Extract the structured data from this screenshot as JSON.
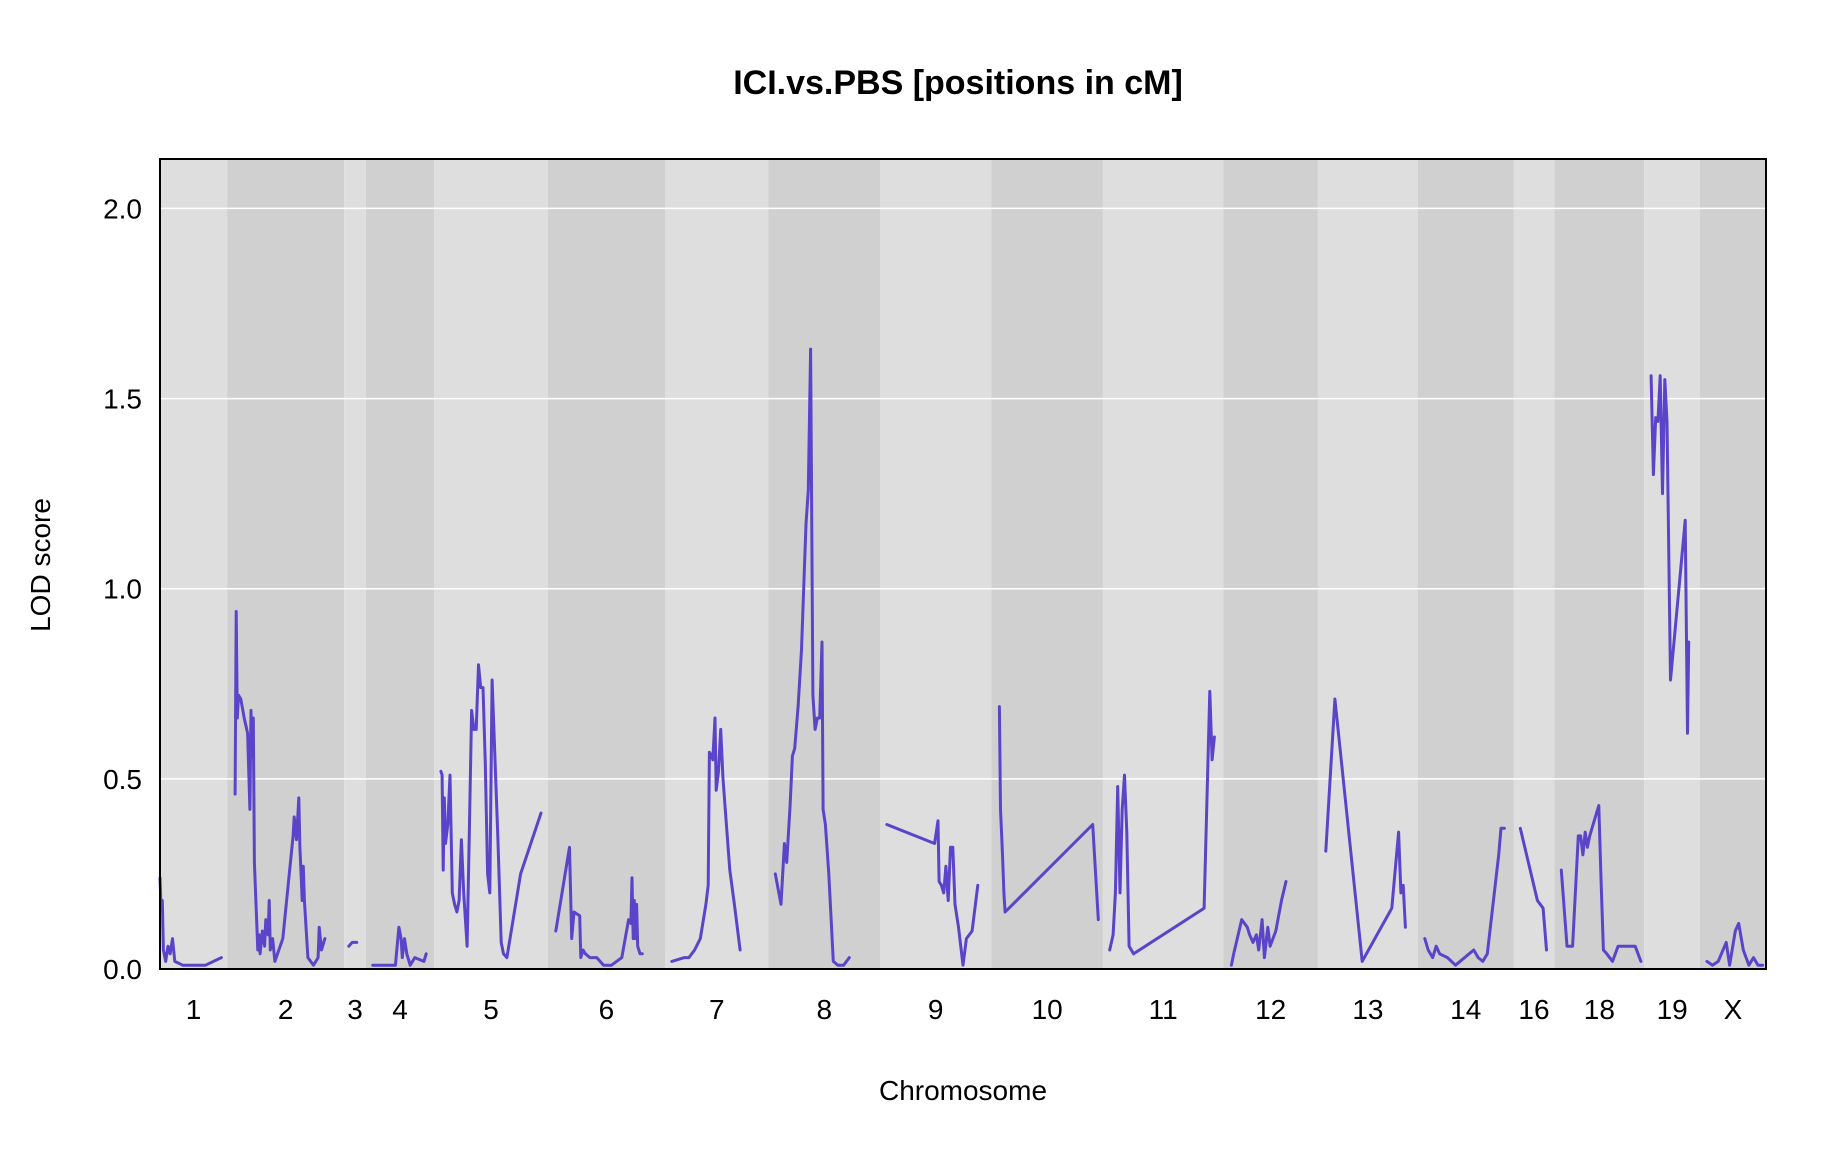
{
  "chart_data": {
    "type": "line",
    "title": "ICI.vs.PBS [positions in cM]",
    "xlabel": "Chromosome",
    "ylabel": "LOD score",
    "ylim": [
      0,
      2.13
    ],
    "yticks": [
      "0.0",
      "0.5",
      "1.0",
      "1.5",
      "2.0"
    ],
    "ytick_values": [
      0,
      0.5,
      1.0,
      1.5,
      2.0
    ],
    "grid": "horizontal",
    "line_color": "#5b44c9",
    "band_colors": [
      "#dedede",
      "#d0d0d0"
    ],
    "chromosomes": [
      {
        "name": "1",
        "length": 58,
        "points": [
          [
            0,
            0.24
          ],
          [
            1,
            0.16
          ],
          [
            2,
            0.18
          ],
          [
            3,
            0.05
          ],
          [
            5,
            0.02
          ],
          [
            7,
            0.06
          ],
          [
            9,
            0.04
          ],
          [
            11,
            0.08
          ],
          [
            13,
            0.02
          ],
          [
            20,
            0.01
          ],
          [
            40,
            0.01
          ],
          [
            54,
            0.03
          ]
        ]
      },
      {
        "name": "2",
        "length": 101,
        "points": [
          [
            6,
            0.46
          ],
          [
            7,
            0.94
          ],
          [
            8,
            0.66
          ],
          [
            9,
            0.72
          ],
          [
            11,
            0.71
          ],
          [
            14,
            0.66
          ],
          [
            17,
            0.62
          ],
          [
            19,
            0.42
          ],
          [
            20,
            0.68
          ],
          [
            21,
            0.56
          ],
          [
            22,
            0.66
          ],
          [
            23,
            0.28
          ],
          [
            26,
            0.05
          ],
          [
            27,
            0.09
          ],
          [
            28,
            0.04
          ],
          [
            30,
            0.1
          ],
          [
            32,
            0.06
          ],
          [
            33,
            0.13
          ],
          [
            35,
            0.09
          ],
          [
            36,
            0.18
          ],
          [
            37,
            0.05
          ],
          [
            39,
            0.08
          ],
          [
            41,
            0.02
          ],
          [
            48,
            0.08
          ],
          [
            57,
            0.35
          ],
          [
            58,
            0.4
          ],
          [
            60,
            0.34
          ],
          [
            62,
            0.45
          ],
          [
            63,
            0.32
          ],
          [
            65,
            0.18
          ],
          [
            66,
            0.27
          ],
          [
            67,
            0.18
          ],
          [
            70,
            0.03
          ],
          [
            75,
            0.01
          ],
          [
            79,
            0.03
          ],
          [
            80,
            0.11
          ],
          [
            82,
            0.05
          ],
          [
            85,
            0.08
          ]
        ]
      },
      {
        "name": "3",
        "length": 17,
        "points": [
          [
            3,
            0.06
          ],
          [
            6,
            0.07
          ],
          [
            10,
            0.07
          ]
        ]
      },
      {
        "name": "4",
        "length": 58,
        "points": [
          [
            5,
            0.01
          ],
          [
            25,
            0.01
          ],
          [
            28,
            0.11
          ],
          [
            30,
            0.08
          ],
          [
            31,
            0.03
          ],
          [
            33,
            0.08
          ],
          [
            35,
            0.04
          ],
          [
            38,
            0.01
          ],
          [
            42,
            0.03
          ],
          [
            50,
            0.02
          ],
          [
            52,
            0.04
          ]
        ]
      },
      {
        "name": "5",
        "length": 98,
        "points": [
          [
            5,
            0.52
          ],
          [
            6,
            0.51
          ],
          [
            7,
            0.26
          ],
          [
            8,
            0.45
          ],
          [
            9,
            0.33
          ],
          [
            11,
            0.38
          ],
          [
            13,
            0.51
          ],
          [
            15,
            0.2
          ],
          [
            17,
            0.17
          ],
          [
            19,
            0.15
          ],
          [
            21,
            0.18
          ],
          [
            23,
            0.34
          ],
          [
            25,
            0.2
          ],
          [
            28,
            0.06
          ],
          [
            30,
            0.37
          ],
          [
            32,
            0.68
          ],
          [
            34,
            0.63
          ],
          [
            36,
            0.63
          ],
          [
            38,
            0.8
          ],
          [
            40,
            0.74
          ],
          [
            42,
            0.74
          ],
          [
            44,
            0.54
          ],
          [
            46,
            0.25
          ],
          [
            48,
            0.2
          ],
          [
            50,
            0.76
          ],
          [
            55,
            0.35
          ],
          [
            58,
            0.07
          ],
          [
            60,
            0.04
          ],
          [
            63,
            0.03
          ],
          [
            75,
            0.25
          ],
          [
            93,
            0.41
          ]
        ]
      },
      {
        "name": "6",
        "length": 101,
        "points": [
          [
            6,
            0.1
          ],
          [
            18,
            0.32
          ],
          [
            20,
            0.08
          ],
          [
            22,
            0.15
          ],
          [
            27,
            0.14
          ],
          [
            28,
            0.03
          ],
          [
            30,
            0.05
          ],
          [
            32,
            0.04
          ],
          [
            36,
            0.03
          ],
          [
            42,
            0.03
          ],
          [
            48,
            0.01
          ],
          [
            55,
            0.01
          ],
          [
            64,
            0.03
          ],
          [
            70,
            0.13
          ],
          [
            72,
            0.12
          ],
          [
            73,
            0.24
          ],
          [
            74,
            0.08
          ],
          [
            75,
            0.18
          ],
          [
            76,
            0.08
          ],
          [
            77,
            0.17
          ],
          [
            78,
            0.06
          ],
          [
            80,
            0.04
          ],
          [
            82,
            0.04
          ]
        ]
      },
      {
        "name": "7",
        "length": 89,
        "points": [
          [
            5,
            0.02
          ],
          [
            16,
            0.03
          ],
          [
            20,
            0.03
          ],
          [
            25,
            0.05
          ],
          [
            30,
            0.08
          ],
          [
            35,
            0.17
          ],
          [
            37,
            0.22
          ],
          [
            38,
            0.57
          ],
          [
            40,
            0.56
          ],
          [
            41,
            0.55
          ],
          [
            43,
            0.66
          ],
          [
            44,
            0.47
          ],
          [
            46,
            0.52
          ],
          [
            48,
            0.63
          ],
          [
            50,
            0.5
          ],
          [
            56,
            0.26
          ],
          [
            60,
            0.17
          ],
          [
            65,
            0.05
          ]
        ]
      },
      {
        "name": "8",
        "length": 96,
        "points": [
          [
            5,
            0.25
          ],
          [
            10,
            0.17
          ],
          [
            13,
            0.33
          ],
          [
            15,
            0.28
          ],
          [
            18,
            0.43
          ],
          [
            20,
            0.56
          ],
          [
            22,
            0.58
          ],
          [
            25,
            0.69
          ],
          [
            28,
            0.84
          ],
          [
            32,
            1.17
          ],
          [
            34,
            1.26
          ],
          [
            36,
            1.63
          ],
          [
            38,
            0.72
          ],
          [
            40,
            0.63
          ],
          [
            42,
            0.66
          ],
          [
            44,
            0.66
          ],
          [
            46,
            0.86
          ],
          [
            47,
            0.42
          ],
          [
            49,
            0.38
          ],
          [
            52,
            0.25
          ],
          [
            56,
            0.02
          ],
          [
            60,
            0.01
          ],
          [
            65,
            0.01
          ],
          [
            70,
            0.03
          ]
        ]
      },
      {
        "name": "9",
        "length": 96,
        "points": [
          [
            5,
            0.38
          ],
          [
            47,
            0.33
          ],
          [
            50,
            0.39
          ],
          [
            51,
            0.23
          ],
          [
            53,
            0.22
          ],
          [
            55,
            0.2
          ],
          [
            57,
            0.27
          ],
          [
            59,
            0.18
          ],
          [
            61,
            0.32
          ],
          [
            63,
            0.32
          ],
          [
            65,
            0.17
          ],
          [
            68,
            0.11
          ],
          [
            72,
            0.01
          ],
          [
            75,
            0.08
          ],
          [
            80,
            0.1
          ],
          [
            85,
            0.22
          ]
        ]
      },
      {
        "name": "10",
        "length": 96,
        "points": [
          [
            6,
            0.69
          ],
          [
            7,
            0.42
          ],
          [
            8,
            0.35
          ],
          [
            9,
            0.28
          ],
          [
            10,
            0.2
          ],
          [
            11,
            0.15
          ],
          [
            88,
            0.38
          ],
          [
            93,
            0.13
          ]
        ]
      },
      {
        "name": "11",
        "length": 104,
        "points": [
          [
            5,
            0.05
          ],
          [
            8,
            0.09
          ],
          [
            10,
            0.2
          ],
          [
            12,
            0.48
          ],
          [
            14,
            0.2
          ],
          [
            16,
            0.42
          ],
          [
            18,
            0.51
          ],
          [
            20,
            0.36
          ],
          [
            22,
            0.06
          ],
          [
            26,
            0.04
          ],
          [
            88,
            0.16
          ],
          [
            93,
            0.73
          ],
          [
            95,
            0.55
          ],
          [
            97,
            0.61
          ]
        ]
      },
      {
        "name": "12",
        "length": 81,
        "points": [
          [
            6,
            0.01
          ],
          [
            8,
            0.04
          ],
          [
            15,
            0.13
          ],
          [
            20,
            0.11
          ],
          [
            22,
            0.09
          ],
          [
            25,
            0.07
          ],
          [
            28,
            0.09
          ],
          [
            30,
            0.05
          ],
          [
            33,
            0.13
          ],
          [
            35,
            0.03
          ],
          [
            38,
            0.11
          ],
          [
            40,
            0.06
          ],
          [
            45,
            0.1
          ],
          [
            50,
            0.18
          ],
          [
            54,
            0.23
          ]
        ]
      },
      {
        "name": "13",
        "length": 86,
        "points": [
          [
            6,
            0.31
          ],
          [
            14,
            0.71
          ],
          [
            38,
            0.02
          ],
          [
            64,
            0.16
          ],
          [
            70,
            0.36
          ],
          [
            72,
            0.2
          ],
          [
            74,
            0.22
          ],
          [
            76,
            0.11
          ]
        ]
      },
      {
        "name": "14",
        "length": 82,
        "points": [
          [
            5,
            0.08
          ],
          [
            8,
            0.05
          ],
          [
            12,
            0.03
          ],
          [
            15,
            0.06
          ],
          [
            18,
            0.04
          ],
          [
            25,
            0.03
          ],
          [
            32,
            0.01
          ],
          [
            48,
            0.05
          ],
          [
            52,
            0.03
          ],
          [
            56,
            0.02
          ],
          [
            60,
            0.04
          ],
          [
            70,
            0.3
          ],
          [
            72,
            0.37
          ],
          [
            75,
            0.37
          ]
        ]
      },
      {
        "name": "16",
        "length": 34,
        "points": [
          [
            5,
            0.37
          ],
          [
            20,
            0.18
          ],
          [
            25,
            0.16
          ],
          [
            28,
            0.05
          ]
        ]
      },
      {
        "name": "18",
        "length": 77,
        "points": [
          [
            5,
            0.26
          ],
          [
            10,
            0.06
          ],
          [
            15,
            0.06
          ],
          [
            20,
            0.35
          ],
          [
            22,
            0.35
          ],
          [
            24,
            0.3
          ],
          [
            26,
            0.36
          ],
          [
            28,
            0.32
          ],
          [
            30,
            0.35
          ],
          [
            38,
            0.43
          ],
          [
            40,
            0.23
          ],
          [
            42,
            0.05
          ],
          [
            45,
            0.04
          ],
          [
            50,
            0.02
          ],
          [
            55,
            0.06
          ],
          [
            60,
            0.06
          ],
          [
            70,
            0.06
          ],
          [
            75,
            0.02
          ]
        ]
      },
      {
        "name": "19",
        "length": 47,
        "points": [
          [
            5,
            1.56
          ],
          [
            7,
            1.3
          ],
          [
            9,
            1.45
          ],
          [
            11,
            1.44
          ],
          [
            13,
            1.56
          ],
          [
            15,
            1.25
          ],
          [
            17,
            1.55
          ],
          [
            19,
            1.44
          ],
          [
            22,
            0.76
          ],
          [
            35,
            1.18
          ],
          [
            37,
            0.62
          ],
          [
            38,
            0.86
          ]
        ]
      },
      {
        "name": "X",
        "length": 57,
        "points": [
          [
            5,
            0.02
          ],
          [
            10,
            0.01
          ],
          [
            15,
            0.02
          ],
          [
            22,
            0.07
          ],
          [
            25,
            0.01
          ],
          [
            30,
            0.1
          ],
          [
            33,
            0.12
          ],
          [
            37,
            0.05
          ],
          [
            42,
            0.01
          ],
          [
            46,
            0.03
          ],
          [
            50,
            0.01
          ],
          [
            54,
            0.01
          ]
        ]
      }
    ]
  }
}
